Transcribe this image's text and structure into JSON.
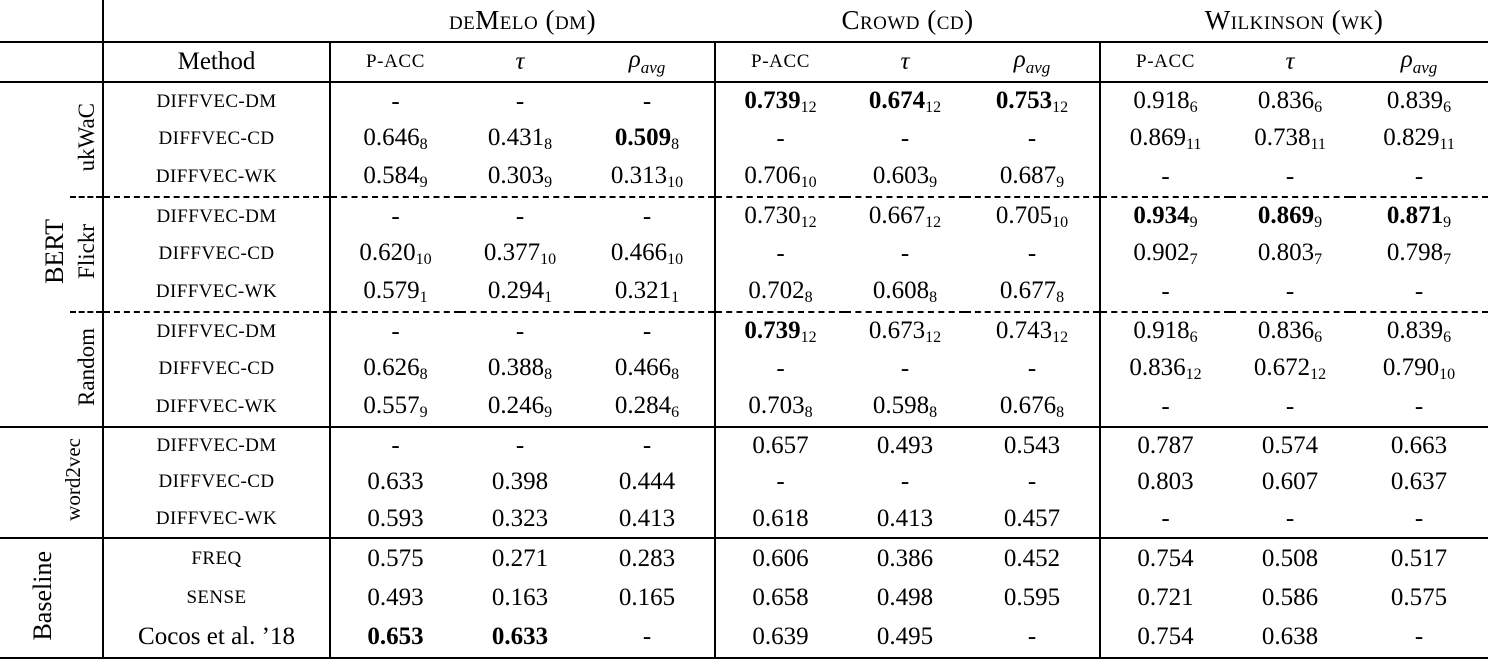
{
  "table": {
    "method_header": "Method",
    "groups": [
      {
        "name": "deMelo (dm)"
      },
      {
        "name": "Crowd (cd)"
      },
      {
        "name": "Wilkinson (wk)"
      }
    ],
    "metrics": [
      {
        "label": "P-ACC"
      },
      {
        "label": "τ"
      },
      {
        "label": "ρ",
        "sub": "avg"
      }
    ],
    "sections": [
      {
        "group_label": "BERT",
        "subsections": [
          {
            "label": "ukWaC",
            "rows": [
              {
                "method": "DIFFVEC-DM",
                "smallcaps": true,
                "cells": [
                  {
                    "v": "-"
                  },
                  {
                    "v": "-"
                  },
                  {
                    "v": "-"
                  },
                  {
                    "v": "0.739",
                    "sub": "12",
                    "bold": true
                  },
                  {
                    "v": "0.674",
                    "sub": "12",
                    "bold": true
                  },
                  {
                    "v": "0.753",
                    "sub": "12",
                    "bold": true
                  },
                  {
                    "v": "0.918",
                    "sub": "6"
                  },
                  {
                    "v": "0.836",
                    "sub": "6"
                  },
                  {
                    "v": "0.839",
                    "sub": "6"
                  }
                ]
              },
              {
                "method": "DIFFVEC-CD",
                "smallcaps": true,
                "cells": [
                  {
                    "v": "0.646",
                    "sub": "8"
                  },
                  {
                    "v": "0.431",
                    "sub": "8"
                  },
                  {
                    "v": "0.509",
                    "sub": "8",
                    "bold": true
                  },
                  {
                    "v": "-"
                  },
                  {
                    "v": "-"
                  },
                  {
                    "v": "-"
                  },
                  {
                    "v": "0.869",
                    "sub": "11"
                  },
                  {
                    "v": "0.738",
                    "sub": "11"
                  },
                  {
                    "v": "0.829",
                    "sub": "11"
                  }
                ]
              },
              {
                "method": "DIFFVEC-WK",
                "smallcaps": true,
                "cells": [
                  {
                    "v": "0.584",
                    "sub": "9"
                  },
                  {
                    "v": "0.303",
                    "sub": "9"
                  },
                  {
                    "v": "0.313",
                    "sub": "10"
                  },
                  {
                    "v": "0.706",
                    "sub": "10"
                  },
                  {
                    "v": "0.603",
                    "sub": "9"
                  },
                  {
                    "v": "0.687",
                    "sub": "9"
                  },
                  {
                    "v": "-"
                  },
                  {
                    "v": "-"
                  },
                  {
                    "v": "-"
                  }
                ]
              }
            ]
          },
          {
            "label": "Flickr",
            "rows": [
              {
                "method": "DIFFVEC-DM",
                "smallcaps": true,
                "cells": [
                  {
                    "v": "-"
                  },
                  {
                    "v": "-"
                  },
                  {
                    "v": "-"
                  },
                  {
                    "v": "0.730",
                    "sub": "12"
                  },
                  {
                    "v": "0.667",
                    "sub": "12"
                  },
                  {
                    "v": "0.705",
                    "sub": "10"
                  },
                  {
                    "v": "0.934",
                    "sub": "9",
                    "bold": true
                  },
                  {
                    "v": "0.869",
                    "sub": "9",
                    "bold": true
                  },
                  {
                    "v": "0.871",
                    "sub": "9",
                    "bold": true
                  }
                ]
              },
              {
                "method": "DIFFVEC-CD",
                "smallcaps": true,
                "cells": [
                  {
                    "v": "0.620",
                    "sub": "10"
                  },
                  {
                    "v": "0.377",
                    "sub": "10"
                  },
                  {
                    "v": "0.466",
                    "sub": "10"
                  },
                  {
                    "v": "-"
                  },
                  {
                    "v": "-"
                  },
                  {
                    "v": "-"
                  },
                  {
                    "v": "0.902",
                    "sub": "7"
                  },
                  {
                    "v": "0.803",
                    "sub": "7"
                  },
                  {
                    "v": "0.798",
                    "sub": "7"
                  }
                ]
              },
              {
                "method": "DIFFVEC-WK",
                "smallcaps": true,
                "cells": [
                  {
                    "v": "0.579",
                    "sub": "1"
                  },
                  {
                    "v": "0.294",
                    "sub": "1"
                  },
                  {
                    "v": "0.321",
                    "sub": "1"
                  },
                  {
                    "v": "0.702",
                    "sub": "8"
                  },
                  {
                    "v": "0.608",
                    "sub": "8"
                  },
                  {
                    "v": "0.677",
                    "sub": "8"
                  },
                  {
                    "v": "-"
                  },
                  {
                    "v": "-"
                  },
                  {
                    "v": "-"
                  }
                ]
              }
            ]
          },
          {
            "label": "Random",
            "rows": [
              {
                "method": "DIFFVEC-DM",
                "smallcaps": true,
                "cells": [
                  {
                    "v": "-"
                  },
                  {
                    "v": "-"
                  },
                  {
                    "v": "-"
                  },
                  {
                    "v": "0.739",
                    "sub": "12",
                    "bold": true
                  },
                  {
                    "v": "0.673",
                    "sub": "12"
                  },
                  {
                    "v": "0.743",
                    "sub": "12"
                  },
                  {
                    "v": "0.918",
                    "sub": "6"
                  },
                  {
                    "v": "0.836",
                    "sub": "6"
                  },
                  {
                    "v": "0.839",
                    "sub": "6"
                  }
                ]
              },
              {
                "method": "DIFFVEC-CD",
                "smallcaps": true,
                "cells": [
                  {
                    "v": "0.626",
                    "sub": "8"
                  },
                  {
                    "v": "0.388",
                    "sub": "8"
                  },
                  {
                    "v": "0.466",
                    "sub": "8"
                  },
                  {
                    "v": "-"
                  },
                  {
                    "v": "-"
                  },
                  {
                    "v": "-"
                  },
                  {
                    "v": "0.836",
                    "sub": "12"
                  },
                  {
                    "v": "0.672",
                    "sub": "12"
                  },
                  {
                    "v": "0.790",
                    "sub": "10"
                  }
                ]
              },
              {
                "method": "DIFFVEC-WK",
                "smallcaps": true,
                "cells": [
                  {
                    "v": "0.557",
                    "sub": "9"
                  },
                  {
                    "v": "0.246",
                    "sub": "9"
                  },
                  {
                    "v": "0.284",
                    "sub": "6"
                  },
                  {
                    "v": "0.703",
                    "sub": "8"
                  },
                  {
                    "v": "0.598",
                    "sub": "8"
                  },
                  {
                    "v": "0.676",
                    "sub": "8"
                  },
                  {
                    "v": "-"
                  },
                  {
                    "v": "-"
                  },
                  {
                    "v": "-"
                  }
                ]
              }
            ]
          }
        ]
      },
      {
        "group_label": "word2vec",
        "rows": [
          {
            "method": "DIFFVEC-DM",
            "smallcaps": true,
            "cells": [
              {
                "v": "-"
              },
              {
                "v": "-"
              },
              {
                "v": "-"
              },
              {
                "v": "0.657"
              },
              {
                "v": "0.493"
              },
              {
                "v": "0.543"
              },
              {
                "v": "0.787"
              },
              {
                "v": "0.574"
              },
              {
                "v": "0.663"
              }
            ]
          },
          {
            "method": "DIFFVEC-CD",
            "smallcaps": true,
            "cells": [
              {
                "v": "0.633"
              },
              {
                "v": "0.398"
              },
              {
                "v": "0.444"
              },
              {
                "v": "-"
              },
              {
                "v": "-"
              },
              {
                "v": "-"
              },
              {
                "v": "0.803"
              },
              {
                "v": "0.607"
              },
              {
                "v": "0.637"
              }
            ]
          },
          {
            "method": "DIFFVEC-WK",
            "smallcaps": true,
            "cells": [
              {
                "v": "0.593"
              },
              {
                "v": "0.323"
              },
              {
                "v": "0.413"
              },
              {
                "v": "0.618"
              },
              {
                "v": "0.413"
              },
              {
                "v": "0.457"
              },
              {
                "v": "-"
              },
              {
                "v": "-"
              },
              {
                "v": "-"
              }
            ]
          }
        ]
      },
      {
        "group_label": "Baseline",
        "rows": [
          {
            "method": "FREQ",
            "smallcaps": true,
            "cells": [
              {
                "v": "0.575"
              },
              {
                "v": "0.271"
              },
              {
                "v": "0.283"
              },
              {
                "v": "0.606"
              },
              {
                "v": "0.386"
              },
              {
                "v": "0.452"
              },
              {
                "v": "0.754"
              },
              {
                "v": "0.508"
              },
              {
                "v": "0.517"
              }
            ]
          },
          {
            "method": "SENSE",
            "smallcaps": true,
            "cells": [
              {
                "v": "0.493"
              },
              {
                "v": "0.163"
              },
              {
                "v": "0.165"
              },
              {
                "v": "0.658"
              },
              {
                "v": "0.498"
              },
              {
                "v": "0.595"
              },
              {
                "v": "0.721"
              },
              {
                "v": "0.586"
              },
              {
                "v": "0.575"
              }
            ]
          },
          {
            "method": "Cocos et al. ’18",
            "smallcaps": false,
            "cells": [
              {
                "v": "0.653",
                "bold": true
              },
              {
                "v": "0.633",
                "bold": true
              },
              {
                "v": "-"
              },
              {
                "v": "0.639"
              },
              {
                "v": "0.495"
              },
              {
                "v": "-"
              },
              {
                "v": "0.754"
              },
              {
                "v": "0.638"
              },
              {
                "v": "-"
              }
            ]
          }
        ]
      }
    ]
  }
}
